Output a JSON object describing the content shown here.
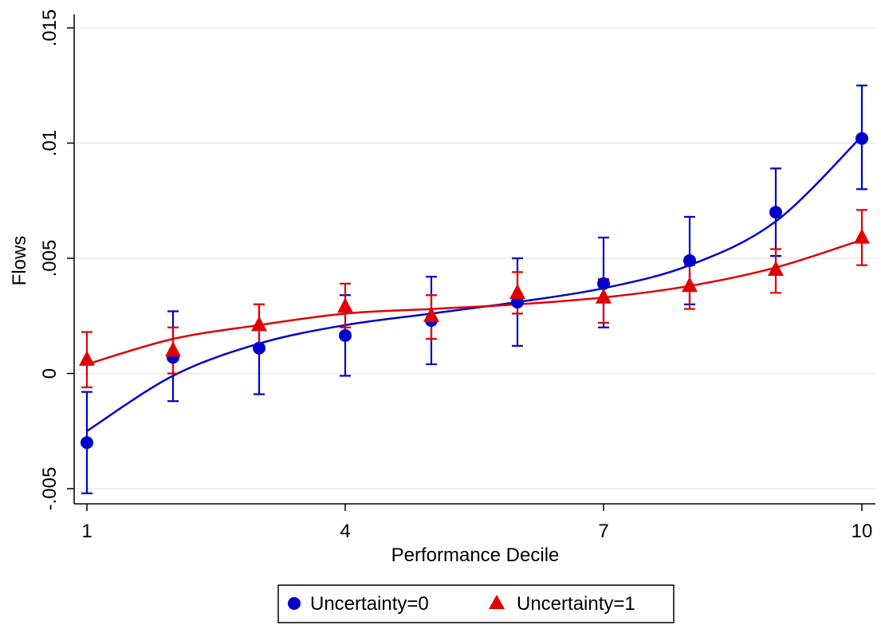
{
  "chart_data": {
    "type": "scatter",
    "xlabel": "Performance Decile",
    "ylabel": "Flows",
    "xlim": [
      1,
      10
    ],
    "ylim": [
      -0.005,
      0.015
    ],
    "x_ticks": [
      1,
      4,
      7,
      10
    ],
    "x_tick_labels": [
      "1",
      "4",
      "7",
      "10"
    ],
    "y_ticks": [
      -0.005,
      0,
      0.005,
      0.01,
      0.015
    ],
    "y_tick_labels": [
      "-.005",
      "0",
      ".005",
      ".01",
      ".015"
    ],
    "grid": "horizontal",
    "legend_position": "bottom",
    "x": [
      1,
      2,
      3,
      4,
      5,
      6,
      7,
      8,
      9,
      10
    ],
    "series": [
      {
        "name": "Uncertainty=0",
        "color": "#0000cc",
        "marker": "circle",
        "values": [
          -0.003,
          0.0007,
          0.0011,
          0.00165,
          0.0023,
          0.0031,
          0.0039,
          0.0049,
          0.007,
          0.0102
        ],
        "ci_lower": [
          -0.0052,
          -0.0012,
          -0.0009,
          -0.0001,
          0.0004,
          0.0012,
          0.002,
          0.003,
          0.0051,
          0.008
        ],
        "ci_upper": [
          -0.0008,
          0.0027,
          0.003,
          0.0034,
          0.0042,
          0.005,
          0.0059,
          0.0068,
          0.0089,
          0.0125
        ],
        "fit": [
          -0.0025,
          -0.0001,
          0.0013,
          0.0021,
          0.0026,
          0.0031,
          0.0037,
          0.0047,
          0.0066,
          0.0103
        ]
      },
      {
        "name": "Uncertainty=1",
        "color": "#e00000",
        "marker": "triangle",
        "values": [
          0.0006,
          0.001,
          0.0021,
          0.0029,
          0.0025,
          0.0035,
          0.0033,
          0.0038,
          0.0045,
          0.0059
        ],
        "ci_lower": [
          -0.0006,
          0.0,
          0.0012,
          0.002,
          0.0015,
          0.0026,
          0.0022,
          0.0028,
          0.0035,
          0.0047
        ],
        "ci_upper": [
          0.0018,
          0.002,
          0.003,
          0.0039,
          0.0034,
          0.0044,
          0.0041,
          0.0047,
          0.0054,
          0.0071
        ],
        "fit": [
          0.0004,
          0.0015,
          0.0021,
          0.0026,
          0.0028,
          0.003,
          0.0033,
          0.0038,
          0.0046,
          0.0058
        ]
      }
    ]
  }
}
